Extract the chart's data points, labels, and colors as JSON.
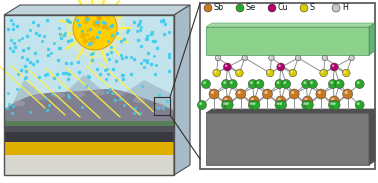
{
  "legend_items": [
    {
      "label": "Sb",
      "color": "#C87820"
    },
    {
      "label": "Se",
      "color": "#28A828"
    },
    {
      "label": "Cu",
      "color": "#B0006A"
    },
    {
      "label": "S",
      "color": "#D8CC00"
    },
    {
      "label": "H",
      "color": "#C8C8C8"
    }
  ],
  "sun_color": "#FFD000",
  "sun_edge": "#D89000",
  "sun_ray_color": "#FFEE44",
  "sky_color": "#B0DCE8",
  "mountain_color": "#90A8B8",
  "rock_color": "#808090",
  "rock_highlight": "#A0A0B0",
  "rock_shadow": "#606070",
  "green_layer_color": "#50A040",
  "dark_layer_color": "#505058",
  "dark_layer2_color": "#383840",
  "gold_layer_color": "#E0B000",
  "base_color": "#D8D8D0",
  "water_dot_color": "#44CCEE",
  "bond_color": "#909090",
  "box_border": "#505050",
  "green_block_top": "#80CC80",
  "green_block_bot": "#409050",
  "green_block_side": "#50A060",
  "substrate_color": "#787878",
  "substrate_dark": "#505050",
  "background": "#FFFFFF",
  "left_box_top_face": "#C0D4DC",
  "left_box_right_face": "#A8BCC8",
  "zoom_line_color": "#303030"
}
